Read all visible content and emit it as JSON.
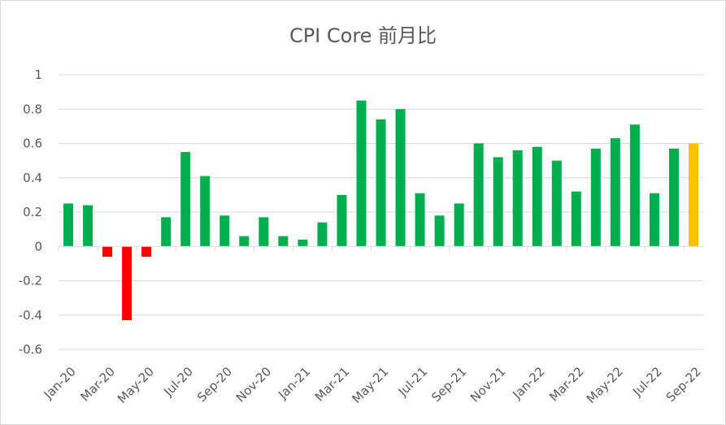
{
  "chart_data": {
    "type": "bar",
    "title": "CPI Core 前月比",
    "xlabel": "",
    "ylabel": "",
    "ylim": [
      -0.6,
      1
    ],
    "y_ticks": [
      1,
      0.8,
      0.6,
      0.4,
      0.2,
      0,
      -0.2,
      -0.4,
      -0.6
    ],
    "grid": true,
    "legend": "none",
    "categories": [
      "Jan-20",
      "Feb-20",
      "Mar-20",
      "Apr-20",
      "May-20",
      "Jun-20",
      "Jul-20",
      "Aug-20",
      "Sep-20",
      "Oct-20",
      "Nov-20",
      "Dec-20",
      "Jan-21",
      "Feb-21",
      "Mar-21",
      "Apr-21",
      "May-21",
      "Jun-21",
      "Jul-21",
      "Aug-21",
      "Sep-21",
      "Oct-21",
      "Nov-21",
      "Dec-21",
      "Jan-22",
      "Feb-22",
      "Mar-22",
      "Apr-22",
      "May-22",
      "Jun-22",
      "Jul-22",
      "Aug-22",
      "Sep-22"
    ],
    "x_tick_labels": [
      "Jan-20",
      "Mar-20",
      "May-20",
      "Jul-20",
      "Sep-20",
      "Nov-20",
      "Jan-21",
      "Mar-21",
      "May-21",
      "Jul-21",
      "Sep-21",
      "Nov-21",
      "Jan-22",
      "Mar-22",
      "May-22",
      "Jul-22",
      "Sep-22"
    ],
    "values": [
      0.25,
      0.24,
      -0.06,
      -0.43,
      -0.06,
      0.17,
      0.55,
      0.41,
      0.18,
      0.06,
      0.17,
      0.06,
      0.04,
      0.14,
      0.3,
      0.85,
      0.74,
      0.8,
      0.31,
      0.18,
      0.25,
      0.6,
      0.52,
      0.56,
      0.58,
      0.5,
      0.32,
      0.57,
      0.63,
      0.71,
      0.31,
      0.57,
      0.6
    ],
    "colors": {
      "positive": "#00b050",
      "negative": "#ff0000",
      "latest": "#ffc000",
      "grid": "#d9d9d9",
      "text": "#595959"
    }
  }
}
